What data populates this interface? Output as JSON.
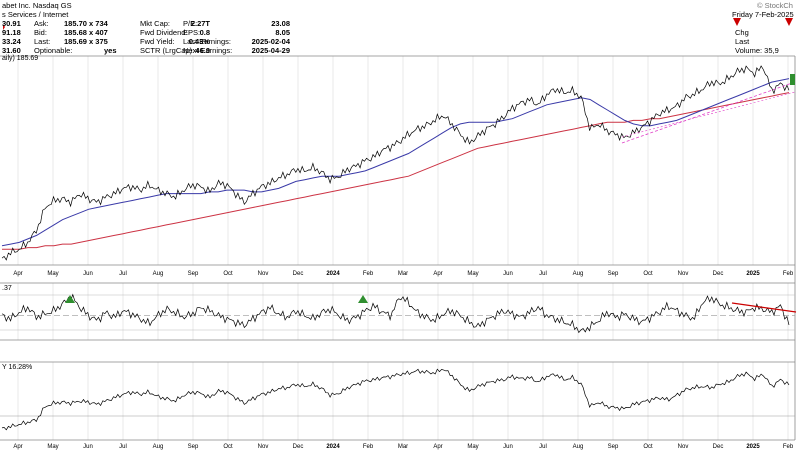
{
  "header": {
    "company": "abet Inc. Nasdaq GS",
    "sector": "s Services / Internet",
    "date": "Friday 7-Feb-2025",
    "watermark": "© StockCh",
    "ohlc": [
      "30.91",
      "91.18",
      "33.24",
      "31.60"
    ],
    "quote_labels": [
      "Ask:",
      "Bid:",
      "Last:",
      "Optionable:"
    ],
    "quote_values": [
      "185.70 x 734",
      "185.68 x 407",
      "185.69 x 375",
      "yes"
    ],
    "stats_labels": [
      "Mkt Cap:",
      "Fwd Dividend:",
      "Fwd Yield:",
      "SCTR (LrgCap):"
    ],
    "stats_values": [
      "2.27T",
      "0.8",
      "0.43%",
      "46.9"
    ],
    "earn_labels": [
      "P/E:",
      "EPS:",
      "Last Earnings:",
      "Next Earnings:"
    ],
    "earn_values": [
      "23.08",
      "8.05",
      "2025-02-04",
      "2025-04-29"
    ],
    "right_labels": [
      "Chg",
      "Last",
      "Volume: 35,9"
    ],
    "price_label": "aily) 185.69"
  },
  "colors": {
    "price": "#000000",
    "ma50": "#3a3aa8",
    "ma200": "#cc3344",
    "trend": "#e040c8",
    "grid": "#d9d9d9",
    "red_marker": "#cc0000",
    "green_marker": "#2f8f2f"
  },
  "chart_data": [
    {
      "type": "line",
      "name": "price",
      "x_labels": [
        "Apr",
        "May",
        "Jun",
        "Jul",
        "Aug",
        "Sep",
        "Oct",
        "Nov",
        "Dec",
        "2024",
        "Feb",
        "Mar",
        "Apr",
        "May",
        "Jun",
        "Jul",
        "Aug",
        "Sep",
        "Oct",
        "Nov",
        "Dec",
        "2025",
        "Feb"
      ],
      "series": [
        {
          "values": [
            88,
            92,
            94,
            98,
            105,
            118,
            122,
            123,
            121,
            126,
            123,
            121,
            124,
            126,
            129,
            130,
            128,
            131,
            128,
            126,
            124,
            128,
            131,
            130,
            127,
            132,
            131,
            126,
            121,
            126,
            130,
            132,
            135,
            137,
            140,
            139,
            141,
            138,
            134,
            136,
            140,
            142,
            145,
            147,
            151,
            153,
            156,
            160,
            163,
            165,
            168,
            171,
            166,
            160,
            155,
            159,
            163,
            166,
            170,
            175,
            178,
            180,
            177,
            183,
            186,
            184,
            185,
            181,
            163,
            166,
            162,
            160,
            158,
            161,
            164,
            168,
            172,
            174,
            176,
            181,
            183,
            186,
            190,
            189,
            192,
            196,
            198,
            195,
            199,
            185,
            189,
            186
          ]
        },
        {
          "name": "50-day MA",
          "values": [
            96,
            97,
            98,
            100,
            102,
            105,
            108,
            111,
            113,
            115,
            117,
            118,
            119,
            120,
            121,
            122,
            123,
            124,
            125,
            126,
            126,
            126,
            126,
            126,
            127,
            127,
            128,
            128,
            128,
            127,
            127,
            128,
            129,
            131,
            133,
            134,
            135,
            136,
            136,
            136,
            137,
            138,
            139,
            141,
            143,
            145,
            147,
            149,
            152,
            155,
            158,
            161,
            164,
            166,
            167,
            167,
            167,
            167,
            168,
            169,
            171,
            173,
            175,
            177,
            178,
            179,
            180,
            181,
            180,
            177,
            174,
            171,
            168,
            166,
            165,
            165,
            166,
            167,
            168,
            170,
            172,
            174,
            176,
            178,
            180,
            182,
            184,
            186,
            188,
            190,
            191,
            192
          ]
        },
        {
          "name": "200-day MA",
          "values": [
            94,
            94,
            94,
            95,
            95,
            96,
            96,
            97,
            97,
            98,
            99,
            100,
            101,
            102,
            103,
            104,
            105,
            106,
            107,
            108,
            109,
            110,
            111,
            112,
            113,
            114,
            115,
            116,
            117,
            118,
            119,
            120,
            121,
            122,
            123,
            124,
            125,
            126,
            127,
            128,
            129,
            130,
            131,
            132,
            133,
            134,
            135,
            136,
            138,
            140,
            142,
            144,
            146,
            148,
            150,
            152,
            153,
            154,
            155,
            156,
            157,
            158,
            159,
            160,
            161,
            162,
            163,
            164,
            165,
            166,
            167,
            167,
            167,
            168,
            168,
            169,
            169,
            170,
            171,
            172,
            173,
            174,
            175,
            176,
            177,
            178,
            179,
            180,
            181,
            182,
            183,
            184
          ]
        }
      ]
    },
    {
      "type": "line",
      "name": "ratio",
      "label": ".37",
      "series": [
        {
          "values": [
            50,
            48,
            52,
            55,
            49,
            51,
            53,
            57,
            62,
            55,
            50,
            47,
            52,
            49,
            53,
            51,
            48,
            45,
            50,
            54,
            52,
            49,
            51,
            55,
            53,
            50,
            48,
            46,
            44,
            48,
            52,
            55,
            51,
            49,
            53,
            50,
            48,
            52,
            54,
            50,
            47,
            49,
            53,
            56,
            52,
            50,
            62,
            58,
            52,
            49,
            47,
            51,
            53,
            50,
            46,
            43,
            47,
            50,
            53,
            51,
            49,
            52,
            55,
            50,
            48,
            46,
            44,
            40,
            43,
            47,
            52,
            49,
            51,
            48,
            46,
            49,
            52,
            56,
            53,
            50,
            48,
            58,
            61,
            57,
            55,
            53,
            52,
            55,
            54,
            52,
            56,
            45
          ]
        }
      ]
    },
    {
      "type": "line",
      "name": "relative-strength",
      "label": "Y 16.28%",
      "series": [
        {
          "values": [
            20,
            22,
            24,
            26,
            28,
            40,
            43,
            44,
            43,
            45,
            44,
            42,
            45,
            48,
            51,
            53,
            51,
            53,
            49,
            47,
            45,
            50,
            53,
            52,
            48,
            54,
            53,
            48,
            43,
            47,
            51,
            53,
            56,
            57,
            60,
            58,
            60,
            56,
            50,
            52,
            57,
            60,
            63,
            64,
            66,
            67,
            69,
            70,
            72,
            71,
            70,
            74,
            68,
            60,
            54,
            58,
            61,
            63,
            64,
            67,
            65,
            66,
            62,
            67,
            69,
            64,
            66,
            60,
            40,
            44,
            40,
            39,
            38,
            42,
            44,
            46,
            48,
            46,
            50,
            55,
            57,
            58,
            57,
            60,
            62,
            67,
            70,
            65,
            69,
            58,
            64,
            60
          ]
        }
      ]
    }
  ]
}
